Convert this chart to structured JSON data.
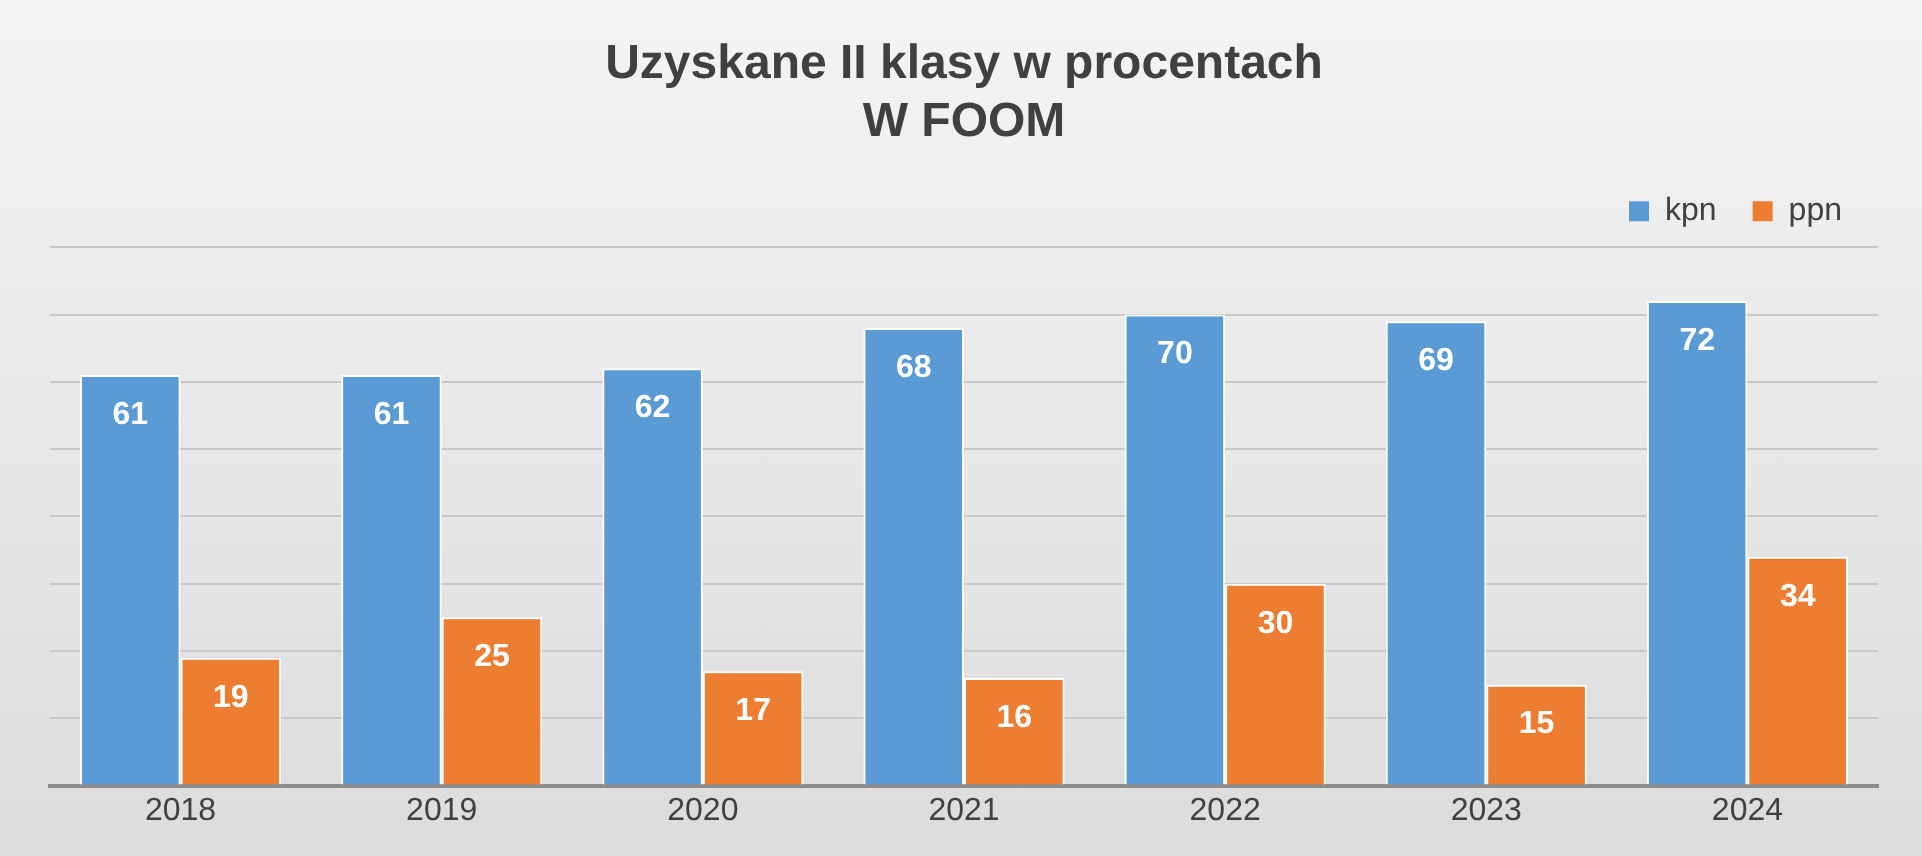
{
  "chart_data": {
    "type": "bar",
    "title": "Uzyskane II klasy w procentach\nW FOOM",
    "categories": [
      "2018",
      "2019",
      "2020",
      "2021",
      "2022",
      "2023",
      "2024"
    ],
    "series": [
      {
        "name": "kpn",
        "color": "#5b9bd5",
        "values": [
          61,
          61,
          62,
          68,
          70,
          69,
          72
        ]
      },
      {
        "name": "ppn",
        "color": "#ed7d31",
        "values": [
          19,
          25,
          17,
          16,
          30,
          15,
          34
        ]
      }
    ],
    "ylim": [
      0,
      80
    ],
    "yticks": [
      0,
      10,
      20,
      30,
      40,
      50,
      60,
      70,
      80
    ],
    "tick_labels": "x",
    "grid": "y",
    "legend": "top right",
    "data_labels": true
  }
}
